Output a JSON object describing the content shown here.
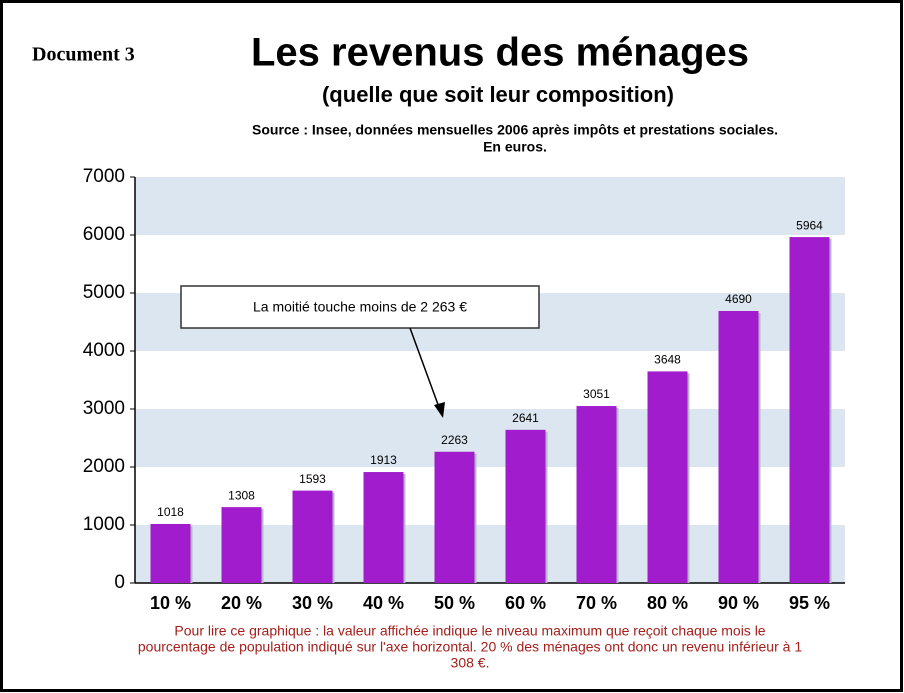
{
  "chart_data": {
    "type": "bar",
    "document_label": "Document 3",
    "title": "Les revenus des ménages",
    "subtitle": "(quelle que soit leur composition)",
    "source": [
      "Source : Insee, données mensuelles 2006 après impôts et prestations sociales.",
      "En euros."
    ],
    "categories": [
      "10 %",
      "20 %",
      "30 %",
      "40 %",
      "50 %",
      "60 %",
      "70 %",
      "80 %",
      "90 %",
      "95 %"
    ],
    "values": [
      1018,
      1308,
      1593,
      1913,
      2263,
      2641,
      3051,
      3648,
      4690,
      5964
    ],
    "color": "#a01ccc",
    "ylim": [
      0,
      7000
    ],
    "yticks": [
      0,
      1000,
      2000,
      3000,
      4000,
      5000,
      6000,
      7000
    ],
    "band_color": "#dce6f0",
    "annotation": "La moitié touche moins de 2 263 €",
    "note": [
      "Pour lire ce graphique : la valeur affichée indique le niveau maximum que reçoit chaque mois le",
      "pourcentage de population indiqué sur l'axe horizontal. 20 % des ménages ont donc un revenu inférieur à 1",
      "308 €."
    ]
  }
}
